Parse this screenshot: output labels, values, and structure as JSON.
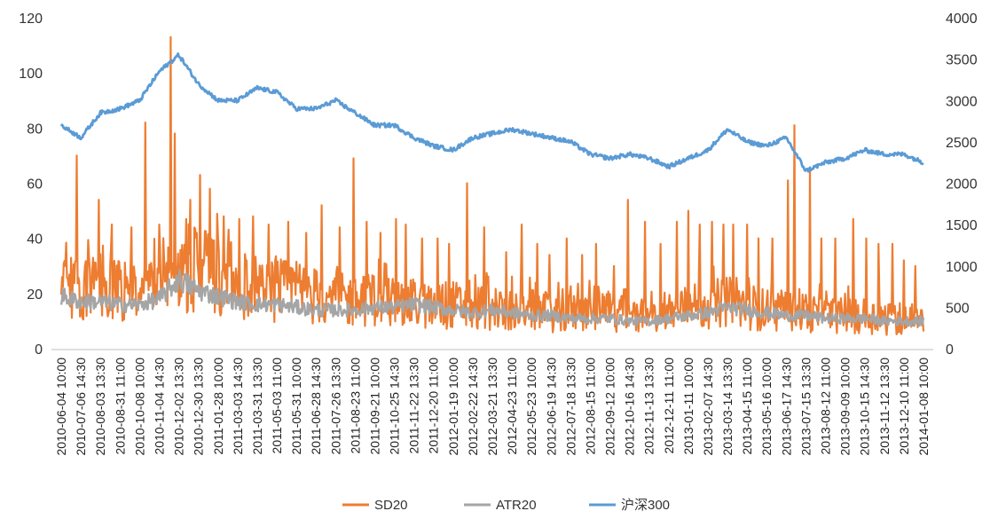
{
  "chart_data": {
    "type": "line",
    "title": "",
    "xlabel": "",
    "ylabel": "",
    "y_left": {
      "min": 0,
      "max": 120,
      "ticks": [
        0,
        20,
        40,
        60,
        80,
        100,
        120
      ]
    },
    "y_right": {
      "min": 0,
      "max": 4000,
      "ticks": [
        0,
        500,
        1000,
        1500,
        2000,
        2500,
        3000,
        3500,
        4000
      ]
    },
    "x_tick_labels": [
      "2010-06-04 10:00",
      "2010-07-06 14:30",
      "2010-08-03 13:30",
      "2010-08-31 11:00",
      "2010-10-08 10:00",
      "2010-11-04 14:30",
      "2010-12-02 13:30",
      "2010-12-30 13:30",
      "2011-01-28 10:00",
      "2011-03-03 14:30",
      "2011-03-31 13:30",
      "2011-05-03 11:00",
      "2011-05-31 10:00",
      "2011-06-28 14:30",
      "2011-07-26 13:30",
      "2011-08-23 11:00",
      "2011-09-21 10:00",
      "2011-10-25 14:30",
      "2011-11-22 13:30",
      "2011-12-20 11:00",
      "2012-01-19 10:00",
      "2012-02-22 14:30",
      "2012-03-21 13:30",
      "2012-04-23 11:00",
      "2012-05-23 10:00",
      "2012-06-19 14:30",
      "2012-07-18 13:30",
      "2012-08-15 11:00",
      "2012-09-12 10:00",
      "2012-10-16 14:30",
      "2012-11-13 13:30",
      "2012-12-11 11:00",
      "2013-01-11 10:00",
      "2013-02-07 14:30",
      "2013-03-14 13:30",
      "2013-04-15 11:00",
      "2013-05-16 10:00",
      "2013-06-17 14:30",
      "2013-07-15 13:30",
      "2013-08-12 11:00",
      "2013-09-09 10:00",
      "2013-10-15 14:30",
      "2013-11-12 13:30",
      "2013-12-10 11:00",
      "2014-01-08 10:00"
    ],
    "legend_position": "bottom",
    "grid": false,
    "series": [
      {
        "name": "SD20",
        "axis": "left",
        "color": "#ED7D31",
        "baseline": [
          22,
          20,
          24,
          21,
          20,
          23,
          25,
          30,
          27,
          24,
          22,
          21,
          21,
          19,
          18,
          17,
          18,
          17,
          16,
          15,
          16,
          15,
          15,
          14,
          14,
          13,
          13,
          13,
          13,
          12,
          12,
          14,
          15,
          16,
          17,
          15,
          14,
          14,
          13,
          12,
          12,
          12,
          11,
          11,
          11
        ],
        "peaks": [
          [
            0.2,
            30
          ],
          [
            0.8,
            70
          ],
          [
            1.9,
            54
          ],
          [
            2.6,
            45
          ],
          [
            3.6,
            44
          ],
          [
            4.3,
            82
          ],
          [
            5.0,
            45
          ],
          [
            5.6,
            113
          ],
          [
            5.8,
            78
          ],
          [
            6.6,
            54
          ],
          [
            7.1,
            63
          ],
          [
            7.6,
            58
          ],
          [
            8.3,
            48
          ],
          [
            9.1,
            47
          ],
          [
            9.8,
            48
          ],
          [
            10.6,
            45
          ],
          [
            11.6,
            46
          ],
          [
            12.5,
            42
          ],
          [
            13.3,
            52
          ],
          [
            14.2,
            44
          ],
          [
            14.9,
            69
          ],
          [
            15.6,
            46
          ],
          [
            16.3,
            42
          ],
          [
            17.1,
            47
          ],
          [
            17.6,
            45
          ],
          [
            18.4,
            40
          ],
          [
            19.2,
            40
          ],
          [
            19.8,
            38
          ],
          [
            20.7,
            60
          ],
          [
            21.6,
            44
          ],
          [
            22.7,
            35
          ],
          [
            23.5,
            45
          ],
          [
            24.3,
            38
          ],
          [
            24.9,
            34
          ],
          [
            25.8,
            40
          ],
          [
            26.6,
            34
          ],
          [
            27.3,
            38
          ],
          [
            28.2,
            30
          ],
          [
            28.9,
            54
          ],
          [
            29.8,
            46
          ],
          [
            30.6,
            38
          ],
          [
            31.4,
            46
          ],
          [
            32.0,
            50
          ],
          [
            32.6,
            45
          ],
          [
            33.2,
            46
          ],
          [
            33.8,
            45
          ],
          [
            34.3,
            45
          ],
          [
            35.0,
            45
          ],
          [
            35.6,
            40
          ],
          [
            36.3,
            40
          ],
          [
            37.1,
            61
          ],
          [
            37.4,
            81
          ],
          [
            38.2,
            65
          ],
          [
            38.8,
            40
          ],
          [
            39.5,
            40
          ],
          [
            40.4,
            47
          ],
          [
            41.1,
            40
          ],
          [
            41.7,
            38
          ],
          [
            42.4,
            38
          ],
          [
            43.0,
            32
          ],
          [
            43.6,
            30
          ],
          [
            44.1,
            32
          ],
          [
            44.7,
            30
          ]
        ]
      },
      {
        "name": "ATR20",
        "axis": "left",
        "color": "#A5A5A5",
        "values": [
          19,
          17,
          17,
          16,
          16,
          18,
          25,
          21,
          19,
          17,
          16,
          16,
          15,
          14,
          14,
          14,
          15,
          15,
          16,
          15,
          14,
          13,
          14,
          13,
          12,
          12,
          11,
          11,
          11,
          10,
          10,
          11,
          12,
          13,
          15,
          14,
          13,
          12,
          12,
          11,
          11,
          11,
          10,
          10,
          10
        ]
      },
      {
        "name": "沪深300",
        "axis": "right",
        "color": "#5B9BD5",
        "values": [
          2700,
          2550,
          2850,
          2900,
          3000,
          3350,
          3550,
          3200,
          3000,
          3000,
          3150,
          3100,
          2900,
          2900,
          3000,
          2850,
          2700,
          2700,
          2550,
          2450,
          2400,
          2550,
          2600,
          2650,
          2600,
          2550,
          2500,
          2350,
          2300,
          2350,
          2300,
          2200,
          2300,
          2400,
          2650,
          2500,
          2450,
          2550,
          2150,
          2250,
          2300,
          2400,
          2350,
          2350,
          2250
        ]
      }
    ]
  }
}
